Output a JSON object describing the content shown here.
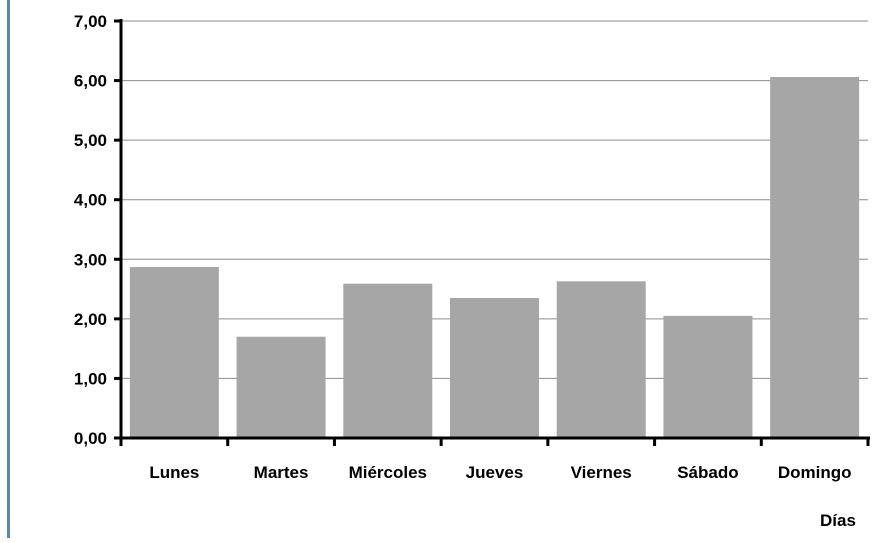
{
  "chart_data": {
    "type": "bar",
    "title": "",
    "xlabel": "Días",
    "ylabel": "",
    "categories": [
      "Lunes",
      "Martes",
      "Miércoles",
      "Jueves",
      "Viernes",
      "Sábado",
      "Domingo"
    ],
    "values": [
      2.87,
      1.7,
      2.59,
      2.35,
      2.63,
      2.05,
      6.06
    ],
    "ylim": [
      0,
      7
    ],
    "yticks": [
      "0,00",
      "1,00",
      "2,00",
      "3,00",
      "4,00",
      "5,00",
      "6,00",
      "7,00"
    ],
    "grid": true,
    "legend": "none",
    "colors": {
      "bar": "#a6a6a6",
      "grid": "#8c8c8c",
      "axis": "#000000",
      "frame_border": "#5b87b5"
    }
  }
}
